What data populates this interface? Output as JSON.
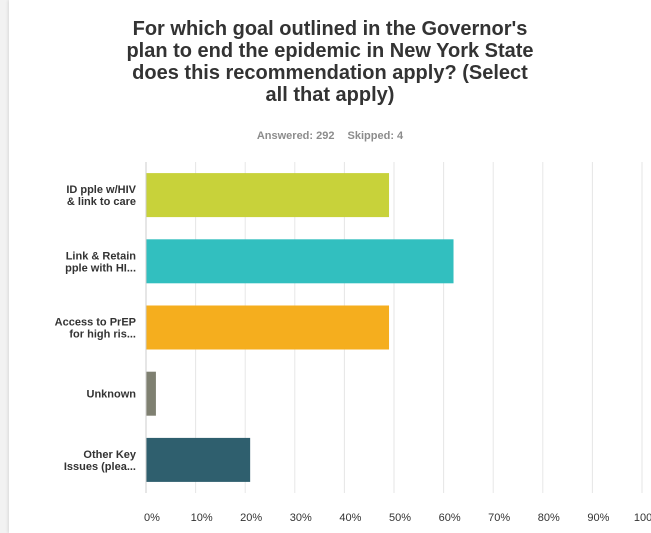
{
  "survey": {
    "title_lines": [
      "For which goal outlined in the Governor's",
      "plan to end the epidemic in New York State",
      "does this recommendation apply? (Select",
      "all that apply)"
    ],
    "answered": "Answered: 292",
    "skipped": "Skipped: 4"
  },
  "chart_data": {
    "type": "bar",
    "orientation": "horizontal",
    "title": "For which goal outlined in the Governor's plan to end the epidemic in New York State does this recommendation apply? (Select all that apply)",
    "categories": [
      [
        "ID pple w/HIV",
        "& link to care"
      ],
      [
        "Link & Retain",
        "pple with HI..."
      ],
      [
        "Access to PrEP",
        "for high ris..."
      ],
      [
        "Unknown"
      ],
      [
        "Other Key",
        "Issues (plea..."
      ]
    ],
    "values": [
      49,
      62,
      49,
      2,
      21
    ],
    "colors": [
      "#c8d23a",
      "#32bfbf",
      "#f5ae1e",
      "#7f8071",
      "#2f5f6e"
    ],
    "xlim": [
      0,
      100
    ],
    "ticks": [
      0,
      10,
      20,
      30,
      40,
      50,
      60,
      70,
      80,
      90,
      100
    ],
    "tick_labels": [
      "0%",
      "10%",
      "20%",
      "30%",
      "40%",
      "50%",
      "60%",
      "70%",
      "80%",
      "90%",
      "100%"
    ],
    "grid": true,
    "xlabel": "",
    "ylabel": ""
  }
}
